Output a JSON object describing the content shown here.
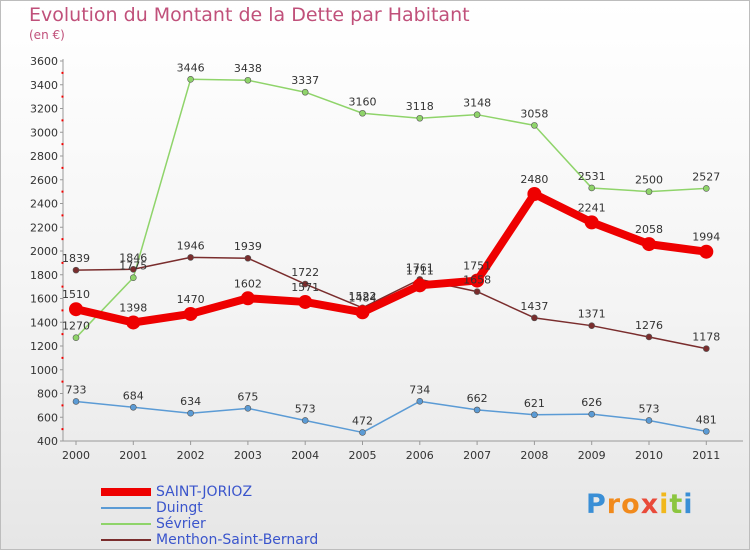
{
  "title": "Evolution du Montant de la Dette par Habitant",
  "subtitle": "(en €)",
  "logo": {
    "text": "Proxiti",
    "colors": [
      "#3a8fd6",
      "#f18a1c",
      "#f18a1c",
      "#e94a3a",
      "#f1b81c",
      "#8cc63f",
      "#3a8fd6"
    ]
  },
  "chart_data": {
    "type": "line",
    "title": "Evolution du Montant de la Dette par Habitant",
    "subtitle": "(en €)",
    "x": [
      "2000",
      "2001",
      "2002",
      "2003",
      "2004",
      "2005",
      "2006",
      "2007",
      "2008",
      "2009",
      "2010",
      "2011"
    ],
    "ylim": [
      400,
      3600
    ],
    "yticks": [
      400,
      600,
      800,
      1000,
      1200,
      1400,
      1600,
      1800,
      2000,
      2200,
      2400,
      2600,
      2800,
      3000,
      3200,
      3400,
      3600
    ],
    "grid": false,
    "legend": "bottom-left",
    "series": [
      {
        "name": "SAINT-JORIOZ",
        "color": "#ee0000",
        "values": [
          1510,
          1398,
          1470,
          1602,
          1571,
          1484,
          1711,
          1751,
          2480,
          2241,
          2058,
          1994
        ]
      },
      {
        "name": "Duingt",
        "color": "#5b9bd5",
        "values": [
          733,
          684,
          634,
          675,
          573,
          472,
          734,
          662,
          621,
          626,
          573,
          481
        ]
      },
      {
        "name": "Sévrier",
        "color": "#8fd46a",
        "values": [
          1270,
          1775,
          3446,
          3438,
          3337,
          3160,
          3118,
          3148,
          3058,
          2531,
          2500,
          2527
        ]
      },
      {
        "name": "Menthon-Saint-Bernard",
        "color": "#7a2d2d",
        "values": [
          1839,
          1846,
          1946,
          1939,
          1722,
          1522,
          1761,
          1658,
          1437,
          1371,
          1276,
          1178
        ]
      }
    ]
  }
}
